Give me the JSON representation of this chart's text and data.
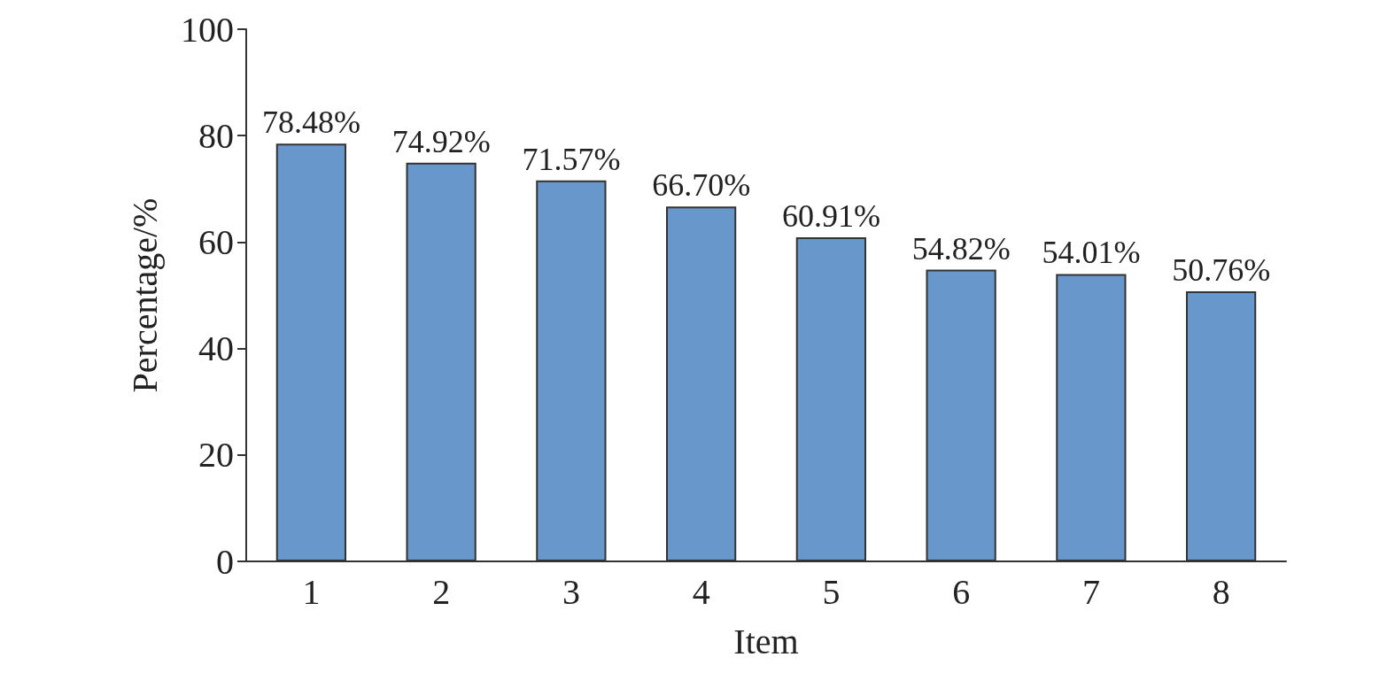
{
  "chart_data": {
    "type": "bar",
    "xlabel": "Item",
    "ylabel": "Percentage/%",
    "categories": [
      "1",
      "2",
      "3",
      "4",
      "5",
      "6",
      "7",
      "8"
    ],
    "values": [
      78.48,
      74.92,
      71.57,
      66.7,
      60.91,
      54.82,
      54.01,
      50.76
    ],
    "value_labels": [
      "78.48%",
      "74.92%",
      "71.57%",
      "66.70%",
      "60.91%",
      "54.82%",
      "54.01%",
      "50.76%"
    ],
    "color": "#6797cb",
    "ylim": [
      0,
      100
    ],
    "yticks": [
      0,
      20,
      40,
      60,
      80,
      100
    ],
    "grid": false
  }
}
